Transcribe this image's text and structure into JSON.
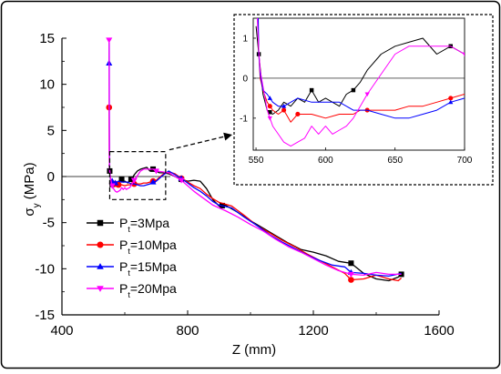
{
  "chart_data": [
    {
      "type": "line",
      "xlabel": "Z (mm)",
      "ylabel_main": "σ",
      "ylabel_sub": "y",
      "ylabel_unit": " (MPa)",
      "xlim": [
        400,
        1600
      ],
      "ylim": [
        -15,
        15
      ],
      "xticks": [
        400,
        800,
        1200,
        1600
      ],
      "yticks": [
        15,
        10,
        5,
        0,
        -5,
        -10,
        -15
      ],
      "zero_line": true,
      "legend": {
        "placement": "bottom-left",
        "entries": [
          {
            "main": "P",
            "sub": "t",
            "rest": "=3Mpa"
          },
          {
            "main": "P",
            "sub": "t",
            "rest": "=10Mpa"
          },
          {
            "main": "P",
            "sub": "t",
            "rest": "=15Mpa"
          },
          {
            "main": "P",
            "sub": "t",
            "rest": "=20Mpa"
          }
        ]
      },
      "zoom_box": {
        "x": [
          552,
          730
        ],
        "y": [
          -2.5,
          2.7
        ]
      },
      "series": [
        {
          "name": "Pt=3Mpa",
          "color": "#000000",
          "marker": "square",
          "x": [
            550,
            552,
            555,
            558,
            562,
            566,
            570,
            575,
            580,
            585,
            590,
            595,
            600,
            605,
            610,
            615,
            620,
            625,
            630,
            640,
            650,
            660,
            670,
            680,
            690,
            700,
            710,
            720,
            740,
            760,
            780,
            800,
            820,
            840,
            860,
            880,
            900,
            920,
            960,
            1000,
            1040,
            1080,
            1120,
            1160,
            1200,
            1240,
            1280,
            1320,
            1360,
            1400,
            1440,
            1470,
            1480
          ],
          "y": [
            1.3,
            0.6,
            -0.4,
            -0.8,
            -0.9,
            -0.8,
            -0.6,
            -0.7,
            -0.5,
            -0.6,
            -0.3,
            -0.6,
            -0.5,
            -0.6,
            -0.7,
            -0.4,
            -0.3,
            -0.1,
            0.2,
            0.6,
            0.8,
            0.9,
            1.0,
            0.6,
            0.8,
            0.6,
            0.4,
            0.4,
            0.3,
            0.0,
            -0.3,
            -0.5,
            -0.4,
            -0.5,
            -1.3,
            -2.5,
            -3.2,
            -3.1,
            -3.9,
            -4.8,
            -5.6,
            -6.4,
            -7.2,
            -7.9,
            -8.2,
            -8.6,
            -9.2,
            -9.4,
            -10.5,
            -11.1,
            -11.3,
            -10.9,
            -10.6
          ],
          "markers_x": [
            552,
            560,
            590,
            620,
            690,
            780,
            910,
            1320,
            1480
          ]
        },
        {
          "name": "Pt=10Mpa",
          "color": "#ff0000",
          "marker": "circle",
          "x": [
            550,
            551,
            552,
            553,
            555,
            558,
            562,
            566,
            570,
            575,
            580,
            590,
            600,
            610,
            620,
            625,
            630,
            640,
            650,
            660,
            670,
            680,
            690,
            700,
            720,
            740,
            760,
            780,
            800,
            820,
            840,
            860,
            880,
            900,
            940,
            980,
            1020,
            1060,
            1100,
            1140,
            1180,
            1220,
            1260,
            1300,
            1320,
            1360,
            1400,
            1440,
            1470,
            1480
          ],
          "y": [
            7.5,
            2.0,
            0.6,
            0.0,
            -0.3,
            -0.6,
            -0.8,
            -0.9,
            -0.8,
            -1.1,
            -0.9,
            -0.9,
            -1.0,
            -0.9,
            -0.9,
            -0.8,
            -0.8,
            -0.8,
            -0.8,
            -0.7,
            -0.7,
            -0.6,
            -0.5,
            -0.4,
            0.2,
            0.5,
            0.3,
            -0.2,
            -0.6,
            -1.0,
            -1.3,
            -1.9,
            -2.4,
            -2.8,
            -3.2,
            -4.2,
            -5.3,
            -6.1,
            -6.9,
            -7.6,
            -8.4,
            -9.1,
            -9.8,
            -10.5,
            -11.2,
            -11.1,
            -10.7,
            -11.1,
            -11.3,
            -11.0
          ],
          "markers_x": [
            550,
            560,
            570,
            580,
            630,
            690,
            780,
            1320
          ]
        },
        {
          "name": "Pt=15Mpa",
          "color": "#0000ff",
          "marker": "triangle-up",
          "x": [
            550,
            550.5,
            551,
            552,
            553,
            555,
            558,
            562,
            566,
            570,
            575,
            580,
            590,
            600,
            610,
            620,
            630,
            640,
            650,
            660,
            670,
            680,
            690,
            700,
            720,
            740,
            760,
            780,
            800,
            820,
            840,
            860,
            880,
            900,
            940,
            980,
            1020,
            1060,
            1100,
            1140,
            1180,
            1220,
            1260,
            1300,
            1320,
            1360,
            1400,
            1440,
            1480
          ],
          "y": [
            12.3,
            14.5,
            3.0,
            0.6,
            0.1,
            -0.3,
            -0.4,
            -0.6,
            -0.7,
            -0.7,
            -0.6,
            -0.5,
            -0.6,
            -0.6,
            -0.6,
            -0.8,
            -0.8,
            -0.9,
            -1.0,
            -1.0,
            -0.9,
            -0.8,
            -0.6,
            -0.5,
            0.1,
            0.6,
            0.2,
            -0.2,
            -0.7,
            -1.2,
            -1.6,
            -2.1,
            -2.7,
            -3.1,
            -3.4,
            -4.4,
            -5.3,
            -6.3,
            -7.1,
            -7.8,
            -8.5,
            -9.1,
            -9.6,
            -9.8,
            -10.4,
            -10.5,
            -10.7,
            -10.8,
            -10.5
          ],
          "markers_x": [
            550,
            560,
            570,
            690,
            780,
            1320
          ]
        },
        {
          "name": "Pt=20Mpa",
          "color": "#ff00ff",
          "marker": "triangle-down",
          "x": [
            550,
            550.5,
            551,
            552,
            553,
            555,
            558,
            562,
            566,
            570,
            575,
            580,
            585,
            590,
            595,
            600,
            605,
            610,
            615,
            620,
            625,
            630,
            640,
            650,
            660,
            670,
            680,
            690,
            700,
            720,
            740,
            760,
            780,
            800,
            820,
            840,
            860,
            880,
            920,
            960,
            1000,
            1040,
            1080,
            1120,
            1160,
            1200,
            1240,
            1280,
            1320,
            1360,
            1400,
            1440,
            1480
          ],
          "y": [
            14.8,
            2.4,
            1.4,
            0.7,
            0.2,
            -0.2,
            -0.8,
            -1.2,
            -1.4,
            -1.6,
            -1.7,
            -1.6,
            -1.5,
            -1.2,
            -1.4,
            -1.2,
            -1.4,
            -1.3,
            -1.2,
            -1.0,
            -0.7,
            -0.4,
            0.1,
            0.6,
            0.8,
            0.8,
            0.8,
            0.8,
            0.6,
            0.5,
            0.4,
            0.0,
            -0.4,
            -1.0,
            -1.6,
            -2.1,
            -2.6,
            -3.1,
            -3.7,
            -4.4,
            -5.2,
            -5.9,
            -6.8,
            -7.6,
            -8.2,
            -8.9,
            -9.6,
            -10.2,
            -10.6,
            -10.7,
            -10.4,
            -10.6,
            -10.6
          ],
          "markers_x": [
            550,
            560,
            630,
            700,
            780,
            1320
          ]
        }
      ]
    },
    {
      "type": "line",
      "role": "inset",
      "xlim": [
        548,
        700
      ],
      "ylim": [
        -1.8,
        1.5
      ],
      "xticks": [
        550,
        600,
        650,
        700
      ],
      "yticks": [
        1,
        0,
        -1
      ],
      "zero_line": true
    }
  ]
}
